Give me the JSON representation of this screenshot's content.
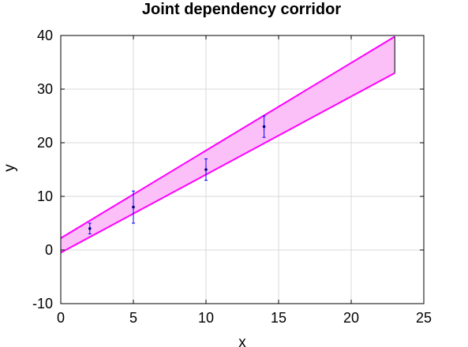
{
  "chart_data": {
    "type": "line",
    "title": "Joint dependency corridor",
    "xlabel": "x",
    "ylabel": "y",
    "xlim": [
      0,
      25
    ],
    "ylim": [
      -10,
      40
    ],
    "xticks": [
      "0",
      "5",
      "10",
      "15",
      "20",
      "25"
    ],
    "yticks": [
      "-10",
      "0",
      "10",
      "20",
      "30",
      "40"
    ],
    "grid": true,
    "legend": "none",
    "band": {
      "x": [
        0,
        23
      ],
      "upper": [
        2.2,
        39.8
      ],
      "lower": [
        -0.5,
        33.0
      ],
      "fill_color": "#fbc0f7",
      "line_color": "#ff00ff"
    },
    "series": [
      {
        "x": [
          2,
          5,
          10,
          14
        ],
        "y": [
          4,
          8,
          15,
          23
        ],
        "err_low": [
          3,
          5,
          13,
          21
        ],
        "err_high": [
          5,
          11,
          17,
          25
        ],
        "color": "#0000ff"
      }
    ]
  },
  "colors": {
    "band_fill": "#fbc0f7",
    "band_edge": "#ff00ff",
    "points": "#0000ff",
    "grid": "#d9d9d9",
    "axis": "#000000"
  }
}
